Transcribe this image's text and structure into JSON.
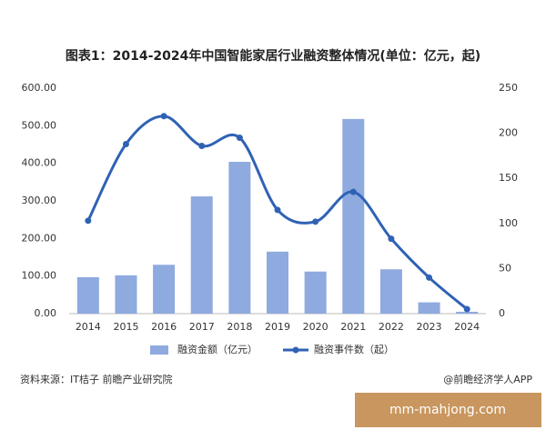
{
  "chart_data": {
    "type": "bar-line",
    "title": "图表1：2014-2024年中国智能家居行业融资整体情况(单位：亿元，起)",
    "categories": [
      "2014",
      "2015",
      "2016",
      "2017",
      "2018",
      "2019",
      "2020",
      "2021",
      "2022",
      "2023",
      "2024"
    ],
    "series": [
      {
        "name": "融资金额（亿元）",
        "type": "bar",
        "color": "#8eaadf",
        "values": [
          97,
          102,
          130,
          312,
          404,
          165,
          112,
          518,
          118,
          30,
          5
        ]
      },
      {
        "name": "融资事件数（起）",
        "type": "line",
        "axis": "y2",
        "color": "#2f62b5",
        "values": [
          103,
          188,
          219,
          186,
          195,
          115,
          102,
          135,
          83,
          40,
          5
        ]
      }
    ],
    "ylim": [
      0,
      600
    ],
    "yticks": [
      {
        "value": 0,
        "label": "0.00"
      },
      {
        "value": 100,
        "label": "100.00"
      },
      {
        "value": 200,
        "label": "200.00"
      },
      {
        "value": 300,
        "label": "300.00"
      },
      {
        "value": 400,
        "label": "400.00"
      },
      {
        "value": 500,
        "label": "500.00"
      },
      {
        "value": 600,
        "label": "600.00"
      }
    ],
    "y2lim": [
      0,
      250
    ],
    "y2ticks": [
      0,
      50,
      100,
      150,
      200,
      250
    ],
    "source": "资料来源：IT桔子 前瞻产业研究院",
    "credit": "@前瞻经济学人APP",
    "watermark": "mm-mahjong.com"
  }
}
